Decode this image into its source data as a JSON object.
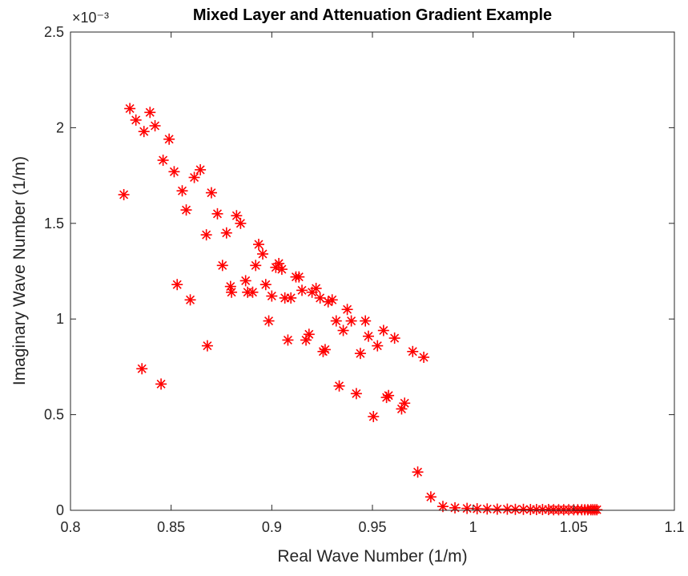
{
  "chart_data": {
    "type": "scatter",
    "title": "Mixed Layer and Attenuation Gradient Example",
    "xlabel": "Real Wave Number (1/m)",
    "ylabel": "Imaginary Wave Number (1/m)",
    "y_exponent_label": "×10⁻³",
    "xlim": [
      0.8,
      1.1
    ],
    "ylim": [
      0,
      2.5
    ],
    "x_ticks": [
      0.8,
      0.85,
      0.9,
      0.95,
      1,
      1.05,
      1.1
    ],
    "x_tick_labels": [
      "0.8",
      "0.85",
      "0.9",
      "0.95",
      "1",
      "1.05",
      "1.1"
    ],
    "y_ticks": [
      0,
      0.5,
      1,
      1.5,
      2,
      2.5
    ],
    "y_tick_labels": [
      "0",
      "0.5",
      "1",
      "1.5",
      "2",
      "2.5"
    ],
    "grid": false,
    "marker": "asterisk",
    "marker_color": "#ff0000",
    "series": [
      {
        "points": [
          [
            0.8265,
            1.65
          ],
          [
            0.8295,
            2.1
          ],
          [
            0.8325,
            2.04
          ],
          [
            0.8355,
            0.74
          ],
          [
            0.8365,
            1.98
          ],
          [
            0.8395,
            2.08
          ],
          [
            0.842,
            2.01
          ],
          [
            0.845,
            0.66
          ],
          [
            0.846,
            1.83
          ],
          [
            0.849,
            1.94
          ],
          [
            0.8515,
            1.77
          ],
          [
            0.853,
            1.18
          ],
          [
            0.8555,
            1.67
          ],
          [
            0.8575,
            1.57
          ],
          [
            0.8595,
            1.1
          ],
          [
            0.8615,
            1.74
          ],
          [
            0.8645,
            1.78
          ],
          [
            0.8675,
            1.44
          ],
          [
            0.868,
            0.86
          ],
          [
            0.87,
            1.66
          ],
          [
            0.873,
            1.55
          ],
          [
            0.8755,
            1.28
          ],
          [
            0.8775,
            1.45
          ],
          [
            0.8795,
            1.17
          ],
          [
            0.88,
            1.14
          ],
          [
            0.8825,
            1.54
          ],
          [
            0.8845,
            1.5
          ],
          [
            0.887,
            1.2
          ],
          [
            0.888,
            1.14
          ],
          [
            0.8905,
            1.14
          ],
          [
            0.892,
            1.28
          ],
          [
            0.8935,
            1.39
          ],
          [
            0.8955,
            1.34
          ],
          [
            0.897,
            1.18
          ],
          [
            0.8985,
            0.99
          ],
          [
            0.9,
            1.12
          ],
          [
            0.902,
            1.27
          ],
          [
            0.9035,
            1.29
          ],
          [
            0.905,
            1.26
          ],
          [
            0.9065,
            1.11
          ],
          [
            0.908,
            0.89
          ],
          [
            0.9095,
            1.11
          ],
          [
            0.912,
            1.22
          ],
          [
            0.9135,
            1.22
          ],
          [
            0.915,
            1.15
          ],
          [
            0.917,
            0.89
          ],
          [
            0.9185,
            0.92
          ],
          [
            0.92,
            1.14
          ],
          [
            0.922,
            1.16
          ],
          [
            0.924,
            1.11
          ],
          [
            0.9255,
            0.83
          ],
          [
            0.9265,
            0.84
          ],
          [
            0.928,
            1.09
          ],
          [
            0.93,
            1.1
          ],
          [
            0.932,
            0.99
          ],
          [
            0.9335,
            0.65
          ],
          [
            0.9355,
            0.94
          ],
          [
            0.9375,
            1.05
          ],
          [
            0.9395,
            0.99
          ],
          [
            0.942,
            0.61
          ],
          [
            0.944,
            0.82
          ],
          [
            0.9465,
            0.99
          ],
          [
            0.948,
            0.91
          ],
          [
            0.9505,
            0.49
          ],
          [
            0.9525,
            0.86
          ],
          [
            0.9555,
            0.94
          ],
          [
            0.957,
            0.59
          ],
          [
            0.958,
            0.6
          ],
          [
            0.961,
            0.9
          ],
          [
            0.9645,
            0.53
          ],
          [
            0.966,
            0.56
          ],
          [
            0.97,
            0.83
          ],
          [
            0.9725,
            0.2
          ],
          [
            0.9755,
            0.8
          ],
          [
            0.979,
            0.07
          ],
          [
            0.985,
            0.02
          ],
          [
            0.991,
            0.013
          ],
          [
            0.997,
            0.01
          ],
          [
            1.002,
            0.008
          ],
          [
            1.007,
            0.007
          ],
          [
            1.012,
            0.006
          ],
          [
            1.017,
            0.006
          ],
          [
            1.021,
            0.005
          ],
          [
            1.025,
            0.005
          ],
          [
            1.0285,
            0.004
          ],
          [
            1.0315,
            0.004
          ],
          [
            1.0345,
            0.004
          ],
          [
            1.0375,
            0.004
          ],
          [
            1.04,
            0.003
          ],
          [
            1.0425,
            0.003
          ],
          [
            1.045,
            0.003
          ],
          [
            1.0475,
            0.003
          ],
          [
            1.05,
            0.003
          ],
          [
            1.052,
            0.003
          ],
          [
            1.054,
            0.003
          ],
          [
            1.0555,
            0.003
          ],
          [
            1.057,
            0.003
          ],
          [
            1.0585,
            0.003
          ],
          [
            1.0595,
            0.003
          ],
          [
            1.0605,
            0.003
          ],
          [
            1.0615,
            0.003
          ]
        ]
      }
    ]
  }
}
